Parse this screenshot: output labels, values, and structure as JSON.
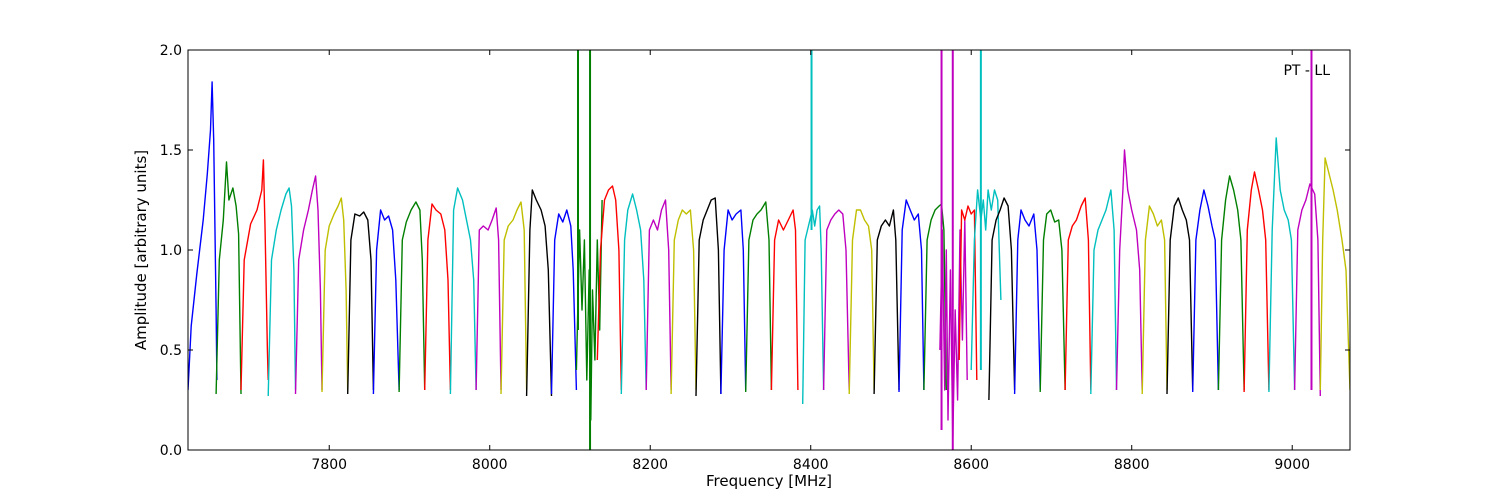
{
  "chart_data": {
    "type": "line",
    "title": "",
    "annotation": "PT - LL",
    "xlabel": "Frequency [MHz]",
    "ylabel": "Amplitude [arbitrary units]",
    "xlim": [
      7624,
      9072
    ],
    "ylim": [
      0,
      2.0
    ],
    "xticks": [
      7800,
      8000,
      8200,
      8400,
      8600,
      8800,
      9000
    ],
    "xtick_labels": [
      "7800",
      "8000",
      "8200",
      "8400",
      "8600",
      "8800",
      "9000"
    ],
    "yticks": [
      0.0,
      0.5,
      1.0,
      1.5,
      2.0
    ],
    "ytick_labels": [
      "0.0",
      "0.5",
      "1.0",
      "1.5",
      "2.0"
    ],
    "grid": false,
    "legend": "none",
    "color_cycle": [
      "#0000ff",
      "#007f00",
      "#ff0000",
      "#00bfbf",
      "#bf00bf",
      "#bfbf00",
      "#000000"
    ],
    "series": [
      {
        "color": "#0000ff",
        "x": [
          7624,
          7628,
          7635,
          7643,
          7648,
          7652,
          7654,
          7656,
          7659,
          7660
        ],
        "y": [
          0.3,
          0.62,
          0.88,
          1.15,
          1.38,
          1.6,
          1.84,
          1.55,
          0.7,
          0.35
        ]
      },
      {
        "color": "#007f00",
        "x": [
          7659,
          7663,
          7668,
          7672,
          7675,
          7680,
          7684,
          7687,
          7690
        ],
        "y": [
          0.28,
          0.95,
          1.15,
          1.44,
          1.25,
          1.31,
          1.22,
          1.08,
          0.28
        ]
      },
      {
        "color": "#ff0000",
        "x": [
          7690,
          7694,
          7702,
          7710,
          7716,
          7718,
          7720,
          7723,
          7724
        ],
        "y": [
          0.3,
          0.95,
          1.13,
          1.2,
          1.3,
          1.45,
          1.12,
          0.5,
          0.35
        ]
      },
      {
        "color": "#00bfbf",
        "x": [
          7724,
          7728,
          7734,
          7740,
          7746,
          7750,
          7753,
          7756,
          7758
        ],
        "y": [
          0.27,
          0.95,
          1.1,
          1.2,
          1.28,
          1.31,
          1.22,
          0.9,
          0.3
        ]
      },
      {
        "color": "#bf00bf",
        "x": [
          7758,
          7762,
          7768,
          7774,
          7779,
          7783,
          7786,
          7789,
          7791
        ],
        "y": [
          0.28,
          0.95,
          1.1,
          1.2,
          1.3,
          1.37,
          1.2,
          0.8,
          0.3
        ]
      },
      {
        "color": "#bfbf00",
        "x": [
          7791,
          7795,
          7800,
          7806,
          7811,
          7815,
          7818,
          7821,
          7823
        ],
        "y": [
          0.29,
          1.0,
          1.12,
          1.18,
          1.22,
          1.26,
          1.15,
          0.8,
          0.3
        ]
      },
      {
        "color": "#000000",
        "x": [
          7823,
          7827,
          7832,
          7838,
          7843,
          7848,
          7852,
          7855
        ],
        "y": [
          0.28,
          1.05,
          1.18,
          1.17,
          1.19,
          1.15,
          0.95,
          0.3
        ]
      },
      {
        "color": "#0000ff",
        "x": [
          7855,
          7859,
          7864,
          7869,
          7874,
          7879,
          7883,
          7887
        ],
        "y": [
          0.28,
          1.0,
          1.2,
          1.15,
          1.17,
          1.1,
          0.85,
          0.3
        ]
      },
      {
        "color": "#007f00",
        "x": [
          7887,
          7891,
          7896,
          7902,
          7908,
          7913,
          7916,
          7919
        ],
        "y": [
          0.29,
          1.05,
          1.14,
          1.2,
          1.24,
          1.2,
          0.95,
          0.3
        ]
      },
      {
        "color": "#ff0000",
        "x": [
          7919,
          7923,
          7928,
          7933,
          7939,
          7944,
          7948,
          7951
        ],
        "y": [
          0.3,
          1.05,
          1.23,
          1.2,
          1.18,
          1.1,
          0.85,
          0.3
        ]
      },
      {
        "color": "#00bfbf",
        "x": [
          7951,
          7955,
          7960,
          7966,
          7971,
          7976,
          7980,
          7983
        ],
        "y": [
          0.28,
          1.2,
          1.31,
          1.25,
          1.15,
          1.05,
          0.85,
          0.3
        ]
      },
      {
        "color": "#bf00bf",
        "x": [
          7983,
          7987,
          7992,
          7998,
          8003,
          8008,
          8011,
          8014
        ],
        "y": [
          0.3,
          1.1,
          1.12,
          1.1,
          1.15,
          1.21,
          1.05,
          0.3
        ]
      },
      {
        "color": "#bfbf00",
        "x": [
          8014,
          8018,
          8023,
          8029,
          8034,
          8039,
          8043,
          8046
        ],
        "y": [
          0.28,
          1.05,
          1.12,
          1.15,
          1.2,
          1.24,
          1.1,
          0.3
        ]
      },
      {
        "color": "#000000",
        "x": [
          8046,
          8050,
          8053,
          8058,
          8064,
          8069,
          8073,
          8077
        ],
        "y": [
          0.27,
          1.1,
          1.3,
          1.25,
          1.2,
          1.12,
          0.9,
          0.27
        ]
      },
      {
        "color": "#0000ff",
        "x": [
          8077,
          8081,
          8086,
          8091,
          8096,
          8101,
          8104,
          8108
        ],
        "y": [
          0.28,
          1.05,
          1.18,
          1.14,
          1.2,
          1.12,
          0.9,
          0.3
        ]
      },
      {
        "color": "#007f00",
        "x": [
          8108,
          8112,
          8115,
          8118,
          8121,
          8124,
          8126,
          8128,
          8131,
          8134,
          8137,
          8140
        ],
        "y": [
          0.4,
          1.1,
          0.7,
          1.05,
          0.35,
          0.9,
          0.15,
          0.8,
          0.45,
          1.05,
          0.6,
          1.25
        ]
      },
      {
        "color": "#ff0000",
        "x": [
          8134,
          8138,
          8143,
          8148,
          8153,
          8157,
          8161,
          8164
        ],
        "y": [
          0.45,
          1.0,
          1.25,
          1.3,
          1.32,
          1.25,
          1.0,
          0.3
        ]
      },
      {
        "color": "#00bfbf",
        "x": [
          8164,
          8168,
          8172,
          8178,
          8183,
          8188,
          8192,
          8195
        ],
        "y": [
          0.28,
          1.05,
          1.2,
          1.28,
          1.2,
          1.1,
          0.85,
          0.3
        ]
      },
      {
        "color": "#bf00bf",
        "x": [
          8195,
          8199,
          8204,
          8209,
          8214,
          8219,
          8223,
          8226
        ],
        "y": [
          0.3,
          1.1,
          1.15,
          1.1,
          1.2,
          1.25,
          1.0,
          0.3
        ]
      },
      {
        "color": "#bfbf00",
        "x": [
          8226,
          8230,
          8235,
          8240,
          8245,
          8250,
          8254,
          8257
        ],
        "y": [
          0.28,
          1.05,
          1.15,
          1.2,
          1.18,
          1.2,
          1.0,
          0.3
        ]
      },
      {
        "color": "#000000",
        "x": [
          8257,
          8261,
          8266,
          8271,
          8276,
          8281,
          8285,
          8288
        ],
        "y": [
          0.27,
          1.05,
          1.15,
          1.2,
          1.25,
          1.26,
          1.0,
          0.28
        ]
      },
      {
        "color": "#0000ff",
        "x": [
          8288,
          8292,
          8297,
          8302,
          8307,
          8313,
          8316,
          8319
        ],
        "y": [
          0.28,
          1.0,
          1.2,
          1.15,
          1.18,
          1.2,
          1.0,
          0.3
        ]
      },
      {
        "color": "#007f00",
        "x": [
          8319,
          8323,
          8328,
          8333,
          8338,
          8344,
          8348,
          8351
        ],
        "y": [
          0.29,
          1.05,
          1.15,
          1.18,
          1.2,
          1.24,
          1.05,
          0.3
        ]
      },
      {
        "color": "#ff0000",
        "x": [
          8351,
          8355,
          8360,
          8366,
          8372,
          8378,
          8381,
          8384
        ],
        "y": [
          0.3,
          1.05,
          1.15,
          1.1,
          1.15,
          1.2,
          1.1,
          0.3
        ]
      },
      {
        "color": "#00bfbf",
        "x": [
          8390,
          8393,
          8396,
          8399,
          8402,
          8405,
          8408,
          8411,
          8413,
          8416
        ],
        "y": [
          0.23,
          1.05,
          1.1,
          1.15,
          1.2,
          1.12,
          1.2,
          1.22,
          1.0,
          0.3
        ]
      },
      {
        "color": "#bf00bf",
        "x": [
          8416,
          8420,
          8425,
          8430,
          8435,
          8440,
          8444,
          8448
        ],
        "y": [
          0.3,
          1.1,
          1.15,
          1.18,
          1.2,
          1.18,
          1.0,
          0.3
        ]
      },
      {
        "color": "#bfbf00",
        "x": [
          8448,
          8452,
          8457,
          8462,
          8467,
          8472,
          8476,
          8479
        ],
        "y": [
          0.28,
          1.05,
          1.2,
          1.2,
          1.15,
          1.12,
          1.0,
          0.3
        ]
      },
      {
        "color": "#000000",
        "x": [
          8479,
          8483,
          8488,
          8493,
          8498,
          8503,
          8506,
          8510
        ],
        "y": [
          0.28,
          1.05,
          1.12,
          1.15,
          1.12,
          1.2,
          1.05,
          0.3
        ]
      },
      {
        "color": "#0000ff",
        "x": [
          8510,
          8514,
          8519,
          8524,
          8529,
          8534,
          8538,
          8541
        ],
        "y": [
          0.29,
          1.1,
          1.25,
          1.2,
          1.15,
          1.18,
          1.0,
          0.3
        ]
      },
      {
        "color": "#007f00",
        "x": [
          8541,
          8545,
          8550,
          8555,
          8560,
          8563,
          8566,
          8569
        ],
        "y": [
          0.3,
          1.05,
          1.15,
          1.2,
          1.22,
          1.23,
          1.1,
          0.3
        ]
      },
      {
        "color": "#bf00bf",
        "x": [
          8561,
          8564,
          8567,
          8569,
          8571,
          8574,
          8577,
          8580,
          8583,
          8586,
          8589,
          8592,
          8595
        ],
        "y": [
          0.5,
          1.1,
          0.3,
          1.0,
          0.15,
          0.9,
          0.05,
          0.7,
          0.25,
          1.1,
          0.55,
          1.15,
          0.35
        ]
      },
      {
        "color": "#ff0000",
        "x": [
          8585,
          8588,
          8592,
          8596,
          8600,
          8604,
          8607
        ],
        "y": [
          0.45,
          1.2,
          1.15,
          1.22,
          1.18,
          1.2,
          0.35
        ]
      },
      {
        "color": "#00bfbf",
        "x": [
          8600,
          8604,
          8608,
          8612,
          8615,
          8618,
          8621,
          8625,
          8629,
          8633,
          8637
        ],
        "y": [
          0.4,
          1.05,
          1.3,
          1.15,
          1.25,
          1.1,
          1.3,
          1.2,
          1.3,
          1.25,
          0.75
        ]
      },
      {
        "color": "#000000",
        "x": [
          8622,
          8626,
          8631,
          8636,
          8641,
          8646,
          8650,
          8654
        ],
        "y": [
          0.25,
          1.05,
          1.15,
          1.2,
          1.26,
          1.22,
          1.0,
          0.3
        ]
      },
      {
        "color": "#0000ff",
        "x": [
          8654,
          8658,
          8662,
          8667,
          8672,
          8678,
          8682,
          8686
        ],
        "y": [
          0.28,
          1.05,
          1.2,
          1.15,
          1.12,
          1.18,
          1.0,
          0.3
        ]
      },
      {
        "color": "#007f00",
        "x": [
          8686,
          8690,
          8694,
          8699,
          8704,
          8709,
          8713,
          8717
        ],
        "y": [
          0.29,
          1.05,
          1.18,
          1.2,
          1.14,
          1.15,
          1.0,
          0.3
        ]
      },
      {
        "color": "#ff0000",
        "x": [
          8717,
          8721,
          8726,
          8731,
          8737,
          8742,
          8746,
          8749
        ],
        "y": [
          0.3,
          1.05,
          1.12,
          1.15,
          1.22,
          1.26,
          1.05,
          0.3
        ]
      },
      {
        "color": "#00bfbf",
        "x": [
          8749,
          8753,
          8758,
          8763,
          8768,
          8774,
          8778,
          8781
        ],
        "y": [
          0.28,
          1.0,
          1.1,
          1.15,
          1.2,
          1.3,
          1.1,
          0.3
        ]
      },
      {
        "color": "#bf00bf",
        "x": [
          8781,
          8785,
          8789,
          8791,
          8795,
          8800,
          8806,
          8810,
          8813
        ],
        "y": [
          0.3,
          1.0,
          1.3,
          1.5,
          1.3,
          1.2,
          1.1,
          0.9,
          0.3
        ]
      },
      {
        "color": "#bfbf00",
        "x": [
          8813,
          8817,
          8822,
          8827,
          8832,
          8837,
          8841,
          8844
        ],
        "y": [
          0.28,
          1.05,
          1.22,
          1.18,
          1.12,
          1.15,
          1.05,
          0.3
        ]
      },
      {
        "color": "#000000",
        "x": [
          8844,
          8848,
          8853,
          8858,
          8863,
          8868,
          8872,
          8876
        ],
        "y": [
          0.28,
          1.05,
          1.22,
          1.26,
          1.2,
          1.15,
          1.05,
          0.3
        ]
      },
      {
        "color": "#0000ff",
        "x": [
          8876,
          8880,
          8885,
          8890,
          8895,
          8900,
          8904,
          8908
        ],
        "y": [
          0.29,
          1.05,
          1.2,
          1.3,
          1.22,
          1.12,
          1.05,
          0.3
        ]
      },
      {
        "color": "#007f00",
        "x": [
          8908,
          8912,
          8917,
          8922,
          8927,
          8932,
          8936,
          8940
        ],
        "y": [
          0.3,
          1.05,
          1.25,
          1.37,
          1.3,
          1.2,
          1.05,
          0.3
        ]
      },
      {
        "color": "#ff0000",
        "x": [
          8940,
          8944,
          8949,
          8953,
          8958,
          8963,
          8967,
          8971
        ],
        "y": [
          0.29,
          1.1,
          1.3,
          1.39,
          1.3,
          1.2,
          1.05,
          0.3
        ]
      },
      {
        "color": "#00bfbf",
        "x": [
          8971,
          8975,
          8980,
          8985,
          8990,
          8995,
          8999,
          9003
        ],
        "y": [
          0.29,
          1.1,
          1.56,
          1.3,
          1.2,
          1.15,
          1.05,
          0.3
        ]
      },
      {
        "color": "#bf00bf",
        "x": [
          9003,
          9007,
          9012,
          9017,
          9022,
          9028,
          9032,
          9035
        ],
        "y": [
          0.3,
          1.1,
          1.2,
          1.25,
          1.33,
          1.28,
          1.05,
          0.27
        ]
      },
      {
        "color": "#bfbf00",
        "x": [
          9035,
          9038,
          9041,
          9046,
          9051,
          9056,
          9062,
          9067,
          9072
        ],
        "y": [
          0.3,
          1.05,
          1.46,
          1.38,
          1.3,
          1.2,
          1.05,
          0.9,
          0.3
        ]
      }
    ],
    "spikes": [
      {
        "color": "#007f00",
        "x": 8110,
        "y": [
          0.6,
          2.0
        ]
      },
      {
        "color": "#007f00",
        "x": 8125,
        "y": [
          0.0,
          2.0
        ]
      },
      {
        "color": "#00bfbf",
        "x": 8401,
        "y": [
          1.1,
          2.0
        ]
      },
      {
        "color": "#bf00bf",
        "x": 8563,
        "y": [
          0.1,
          2.0
        ]
      },
      {
        "color": "#bf00bf",
        "x": 8577,
        "y": [
          0.0,
          2.0
        ]
      },
      {
        "color": "#00bfbf",
        "x": 8612,
        "y": [
          0.4,
          2.0
        ]
      },
      {
        "color": "#bf00bf",
        "x": 9024,
        "y": [
          0.3,
          2.0
        ]
      }
    ]
  }
}
